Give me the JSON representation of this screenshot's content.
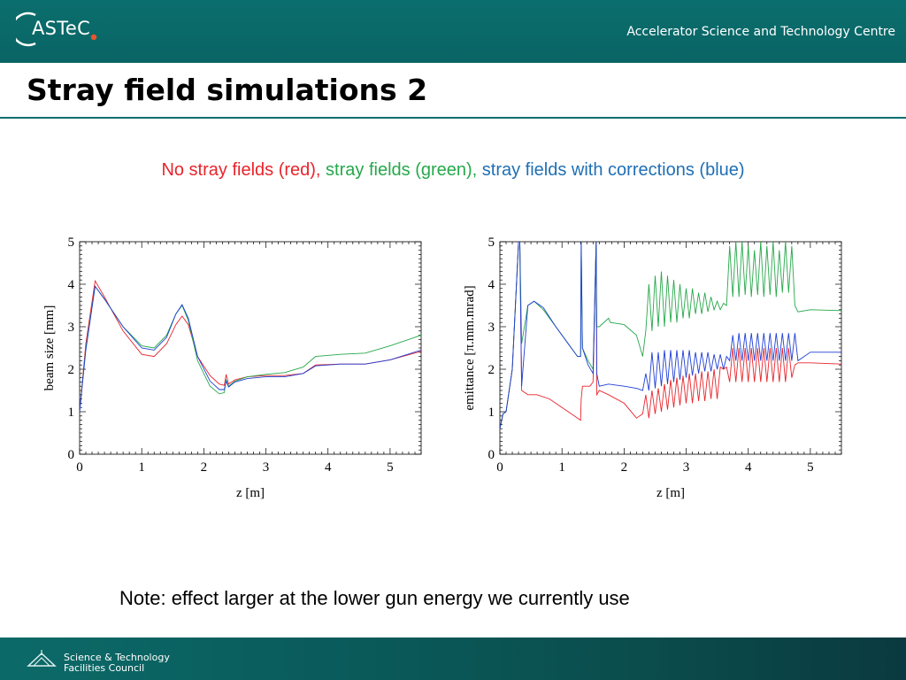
{
  "header": {
    "logo_text": "ASTeC",
    "centre_name": "Accelerator Science and Technology Centre"
  },
  "page": {
    "title": "Stray field simulations 2",
    "subtitle_parts": [
      {
        "text": "No stray fields (red), ",
        "color": "#e8242b"
      },
      {
        "text": "stray fields (green), ",
        "color": "#26a84a"
      },
      {
        "text": "stray fields with corrections (blue)",
        "color": "#1f6fb5"
      }
    ],
    "note": "Note: effect larger at the lower gun energy we currently use"
  },
  "footer": {
    "line1": "Science & Technology",
    "line2": "Facilities Council"
  },
  "colors": {
    "header_bg": "#0b6e6e",
    "red_series": "#e8242b",
    "green_series": "#26a84a",
    "blue_series": "#1f3fd6"
  },
  "chart_data": [
    {
      "type": "line",
      "xlabel": "z [m]",
      "ylabel": "beam size [mm]",
      "xlim": [
        0,
        5.5
      ],
      "ylim": [
        0,
        5
      ],
      "xticks": [
        0,
        1,
        2,
        3,
        4,
        5
      ],
      "yticks": [
        0,
        1,
        2,
        3,
        4,
        5
      ],
      "grid": false,
      "series": [
        {
          "color": "#e8242b",
          "x": [
            0,
            0.1,
            0.25,
            0.4,
            0.7,
            1.0,
            1.2,
            1.4,
            1.55,
            1.65,
            1.75,
            1.9,
            2.1,
            2.25,
            2.33,
            2.36,
            2.4,
            2.5,
            2.7,
            3.0,
            3.3,
            3.6,
            3.8,
            4.2,
            4.6,
            5.0,
            5.5
          ],
          "y": [
            1.0,
            2.6,
            4.08,
            3.7,
            2.9,
            2.35,
            2.3,
            2.6,
            3.05,
            3.25,
            3.05,
            2.3,
            1.85,
            1.65,
            1.62,
            1.88,
            1.65,
            1.75,
            1.82,
            1.85,
            1.85,
            1.9,
            2.1,
            2.12,
            2.12,
            2.22,
            2.42
          ]
        },
        {
          "color": "#26a84a",
          "x": [
            0,
            0.1,
            0.25,
            0.4,
            0.7,
            1.0,
            1.2,
            1.4,
            1.55,
            1.65,
            1.75,
            1.9,
            2.1,
            2.25,
            2.33,
            2.36,
            2.4,
            2.5,
            2.7,
            3.0,
            3.3,
            3.6,
            3.8,
            4.2,
            4.6,
            5.0,
            5.5
          ],
          "y": [
            1.0,
            2.5,
            3.95,
            3.65,
            3.0,
            2.55,
            2.5,
            2.8,
            3.3,
            3.5,
            3.15,
            2.2,
            1.6,
            1.42,
            1.45,
            1.75,
            1.6,
            1.72,
            1.82,
            1.88,
            1.92,
            2.05,
            2.3,
            2.35,
            2.38,
            2.55,
            2.8
          ]
        },
        {
          "color": "#1f3fd6",
          "x": [
            0,
            0.1,
            0.25,
            0.4,
            0.7,
            1.0,
            1.2,
            1.4,
            1.55,
            1.65,
            1.75,
            1.9,
            2.1,
            2.25,
            2.33,
            2.36,
            2.4,
            2.5,
            2.7,
            3.0,
            3.3,
            3.6,
            3.8,
            4.2,
            4.6,
            5.0,
            5.5
          ],
          "y": [
            1.0,
            2.45,
            3.95,
            3.65,
            3.0,
            2.5,
            2.45,
            2.75,
            3.3,
            3.52,
            3.2,
            2.3,
            1.72,
            1.52,
            1.52,
            1.72,
            1.58,
            1.7,
            1.78,
            1.82,
            1.82,
            1.9,
            2.08,
            2.12,
            2.12,
            2.22,
            2.45
          ]
        }
      ]
    },
    {
      "type": "line",
      "xlabel": "z [m]",
      "ylabel": "emittance [π.mm.mrad]",
      "xlim": [
        0,
        5.5
      ],
      "ylim": [
        0,
        5
      ],
      "xticks": [
        0,
        1,
        2,
        3,
        4,
        5
      ],
      "yticks": [
        0,
        1,
        2,
        3,
        4,
        5
      ],
      "grid": false,
      "series": [
        {
          "color": "#e8242b",
          "x": [
            0,
            0.05,
            0.1,
            0.2,
            0.3,
            0.32,
            0.35,
            0.45,
            0.6,
            0.8,
            1.0,
            1.2,
            1.3,
            1.31,
            1.33,
            1.45,
            1.5,
            1.55,
            1.56,
            1.6,
            1.75,
            2.0,
            2.2,
            2.3,
            2.35,
            2.4,
            2.45,
            2.5,
            2.55,
            2.6,
            2.65,
            2.7,
            2.75,
            2.8,
            2.85,
            2.9,
            2.95,
            3.0,
            3.05,
            3.1,
            3.15,
            3.2,
            3.25,
            3.3,
            3.35,
            3.4,
            3.45,
            3.5,
            3.55,
            3.6,
            3.65,
            3.7,
            3.75,
            3.8,
            3.85,
            3.9,
            3.95,
            4.0,
            4.05,
            4.1,
            4.15,
            4.2,
            4.25,
            4.3,
            4.35,
            4.4,
            4.45,
            4.5,
            4.55,
            4.6,
            4.65,
            4.7,
            4.75,
            4.8,
            5.0,
            5.5
          ],
          "y": [
            0.6,
            0.95,
            1.0,
            2.0,
            5.0,
            5.0,
            1.5,
            1.4,
            1.4,
            1.3,
            1.1,
            0.9,
            0.8,
            1.3,
            1.6,
            1.6,
            1.7,
            5.0,
            1.4,
            1.5,
            1.4,
            1.2,
            0.85,
            0.95,
            1.4,
            0.85,
            1.5,
            0.95,
            1.55,
            1.0,
            1.65,
            1.05,
            1.75,
            1.1,
            1.8,
            1.15,
            1.85,
            1.2,
            1.9,
            1.2,
            1.9,
            1.25,
            1.95,
            1.25,
            1.95,
            1.3,
            2.0,
            1.3,
            2.05,
            2.0,
            2.05,
            1.7,
            2.5,
            1.7,
            2.5,
            1.7,
            2.5,
            1.7,
            2.5,
            1.7,
            2.5,
            1.7,
            2.5,
            1.7,
            2.5,
            1.7,
            2.5,
            1.7,
            2.5,
            1.7,
            2.5,
            1.8,
            2.1,
            2.15,
            2.15,
            2.12
          ]
        },
        {
          "color": "#26a84a",
          "x": [
            0,
            0.05,
            0.1,
            0.2,
            0.3,
            0.32,
            0.35,
            0.45,
            0.55,
            0.7,
            0.9,
            1.1,
            1.25,
            1.3,
            1.31,
            1.33,
            1.42,
            1.5,
            1.55,
            1.56,
            1.6,
            1.75,
            1.78,
            2.0,
            2.2,
            2.3,
            2.35,
            2.4,
            2.45,
            2.5,
            2.55,
            2.6,
            2.65,
            2.7,
            2.75,
            2.8,
            2.85,
            2.9,
            2.95,
            3.0,
            3.05,
            3.1,
            3.15,
            3.2,
            3.25,
            3.3,
            3.35,
            3.4,
            3.45,
            3.5,
            3.55,
            3.6,
            3.65,
            3.7,
            3.75,
            3.8,
            3.85,
            3.9,
            3.95,
            4.0,
            4.05,
            4.1,
            4.15,
            4.2,
            4.25,
            4.3,
            4.35,
            4.4,
            4.45,
            4.5,
            4.55,
            4.6,
            4.65,
            4.7,
            4.75,
            4.8,
            5.0,
            5.5
          ],
          "y": [
            0.6,
            0.95,
            1.0,
            2.0,
            5.0,
            5.0,
            2.6,
            3.5,
            3.6,
            3.4,
            3.0,
            2.6,
            2.3,
            2.3,
            5.0,
            2.5,
            2.2,
            2.0,
            5.0,
            3.0,
            3.0,
            3.2,
            3.1,
            3.05,
            2.8,
            2.3,
            2.9,
            4.0,
            2.9,
            4.2,
            3.0,
            4.3,
            3.0,
            4.2,
            3.1,
            4.1,
            3.1,
            4.0,
            3.2,
            3.9,
            3.2,
            3.9,
            3.3,
            3.8,
            3.3,
            3.8,
            3.35,
            3.7,
            3.4,
            3.6,
            3.4,
            3.55,
            3.5,
            4.9,
            3.7,
            5.0,
            3.7,
            5.0,
            3.75,
            4.9,
            3.7,
            4.8,
            3.75,
            5.0,
            3.7,
            4.9,
            3.75,
            5.0,
            3.7,
            4.8,
            3.8,
            5.0,
            3.8,
            4.9,
            3.5,
            3.35,
            3.4,
            3.38
          ]
        },
        {
          "color": "#1f3fd6",
          "x": [
            0,
            0.05,
            0.1,
            0.2,
            0.3,
            0.32,
            0.35,
            0.45,
            0.55,
            0.7,
            0.9,
            1.1,
            1.25,
            1.3,
            1.31,
            1.33,
            1.42,
            1.5,
            1.55,
            1.56,
            1.6,
            1.75,
            2.0,
            2.2,
            2.3,
            2.35,
            2.4,
            2.45,
            2.5,
            2.55,
            2.6,
            2.65,
            2.7,
            2.75,
            2.8,
            2.85,
            2.9,
            2.95,
            3.0,
            3.05,
            3.1,
            3.15,
            3.2,
            3.25,
            3.3,
            3.35,
            3.4,
            3.45,
            3.5,
            3.55,
            3.6,
            3.65,
            3.7,
            3.75,
            3.8,
            3.85,
            3.9,
            3.95,
            4.0,
            4.05,
            4.1,
            4.15,
            4.2,
            4.25,
            4.3,
            4.35,
            4.4,
            4.45,
            4.5,
            4.55,
            4.6,
            4.65,
            4.7,
            4.75,
            4.8,
            5.0,
            5.5
          ],
          "y": [
            0.6,
            0.95,
            1.0,
            2.0,
            5.0,
            5.0,
            1.6,
            3.5,
            3.6,
            3.45,
            3.0,
            2.6,
            2.3,
            2.3,
            5.0,
            2.5,
            2.1,
            1.9,
            5.0,
            1.9,
            1.6,
            1.65,
            1.6,
            1.55,
            1.5,
            1.9,
            1.5,
            2.4,
            1.55,
            2.4,
            1.6,
            2.45,
            1.65,
            2.45,
            1.7,
            2.45,
            1.75,
            2.45,
            1.8,
            2.45,
            1.85,
            2.4,
            1.9,
            2.4,
            1.95,
            2.4,
            1.95,
            2.35,
            2.0,
            2.35,
            2.0,
            2.3,
            2.2,
            2.8,
            2.2,
            2.85,
            2.2,
            2.85,
            2.2,
            2.85,
            2.2,
            2.85,
            2.2,
            2.85,
            2.2,
            2.85,
            2.2,
            2.85,
            2.2,
            2.85,
            2.2,
            2.85,
            2.2,
            2.85,
            2.2,
            2.4,
            2.4
          ]
        }
      ]
    }
  ]
}
